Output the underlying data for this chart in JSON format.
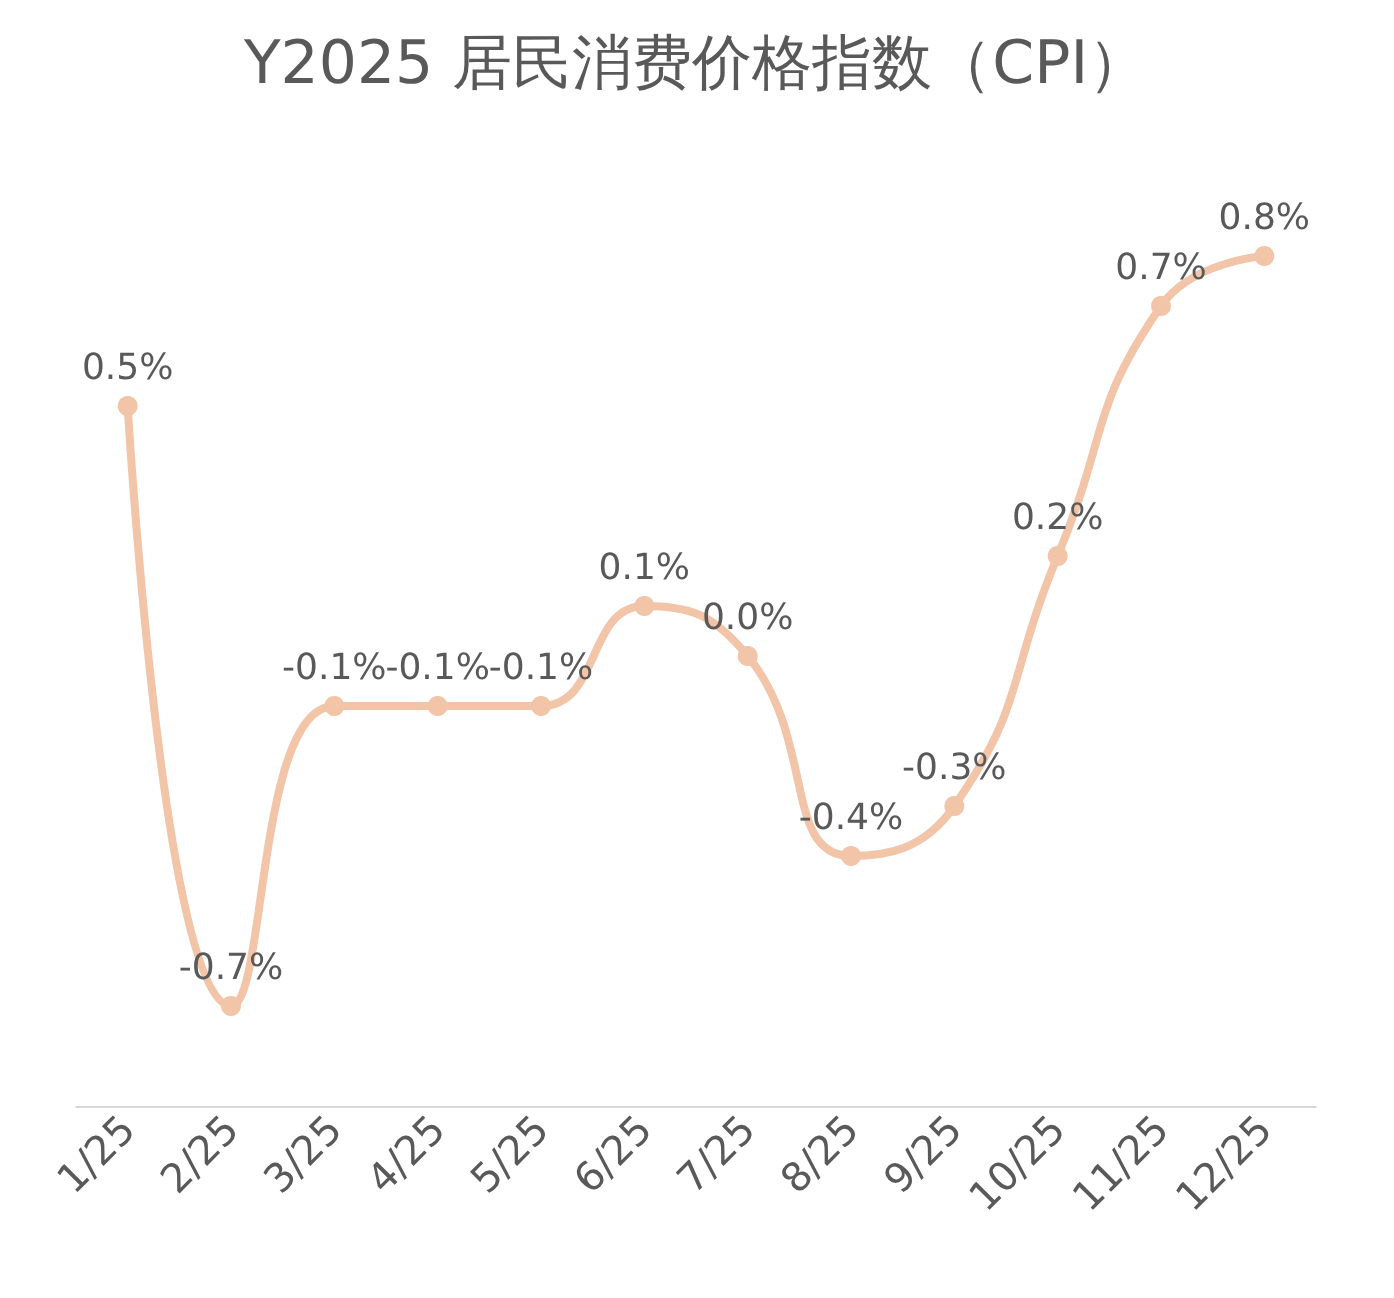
{
  "chart_data": {
    "type": "line",
    "title": "Y2025 居民消费价格指数（CPI）",
    "categories": [
      "1/25",
      "2/25",
      "3/25",
      "4/25",
      "5/25",
      "6/25",
      "7/25",
      "8/25",
      "9/25",
      "10/25",
      "11/25",
      "12/25"
    ],
    "series": [
      {
        "color": "#f2c4a8",
        "values": [
          0.5,
          -0.7,
          -0.1,
          -0.1,
          -0.1,
          0.1,
          0.0,
          -0.4,
          -0.3,
          0.2,
          0.7,
          0.8
        ],
        "value_labels": [
          "0.5%",
          "-0.7%",
          "-0.1%",
          "-0.1%",
          "-0.1%",
          "0.1%",
          "0.0%",
          "-0.4%",
          "-0.3%",
          "0.2%",
          "0.7%",
          "0.8%"
        ]
      }
    ],
    "marker": "circle",
    "grid": false
  }
}
